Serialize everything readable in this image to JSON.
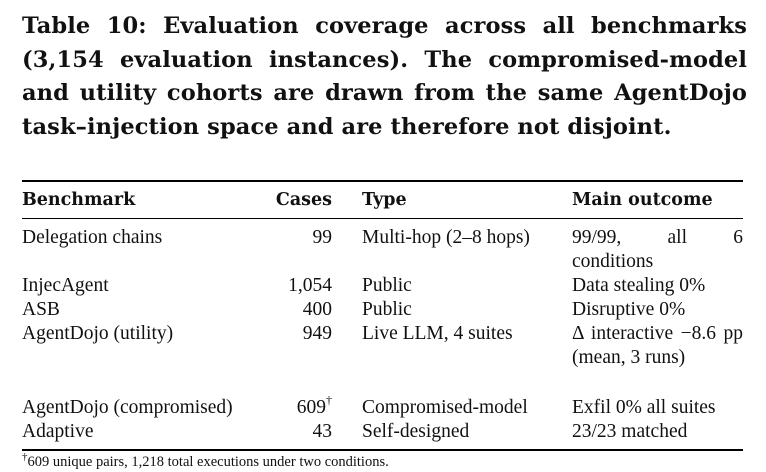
{
  "caption": "Table 10: Evaluation coverage across all benchmarks (3,154 evaluation instances). The compromised-model and utility cohorts are drawn from the same AgentDojo task–injection space and are therefore not disjoint.",
  "table": {
    "headers": [
      "Benchmark",
      "Cases",
      "Type",
      "Main outcome"
    ],
    "rows": [
      {
        "benchmark": "Delegation chains",
        "cases": "99",
        "type": "Multi-hop (2–8 hops)",
        "outcome": "99/99, all 6 conditions"
      },
      {
        "benchmark": "InjecAgent",
        "cases": "1,054",
        "type": "Public",
        "outcome": "Data stealing 0%"
      },
      {
        "benchmark": "ASB",
        "cases": "400",
        "type": "Public",
        "outcome": "Disruptive 0%"
      },
      {
        "benchmark": "AgentDojo (utility)",
        "cases": "949",
        "type": "Live LLM, 4 suites",
        "outcome": "Δ interactive −8.6 pp (mean, 3 runs)"
      },
      {
        "benchmark": "AgentDojo (compromised)",
        "cases": "609",
        "cases_mark": "†",
        "type": "Compromised-model",
        "outcome": "Exfil 0% all suites"
      },
      {
        "benchmark": "Adaptive",
        "cases": "43",
        "type": "Self-designed",
        "outcome": "23/23 matched"
      }
    ]
  },
  "footnote": {
    "mark": "†",
    "text": "609 unique pairs, 1,218 total executions under two conditions."
  }
}
